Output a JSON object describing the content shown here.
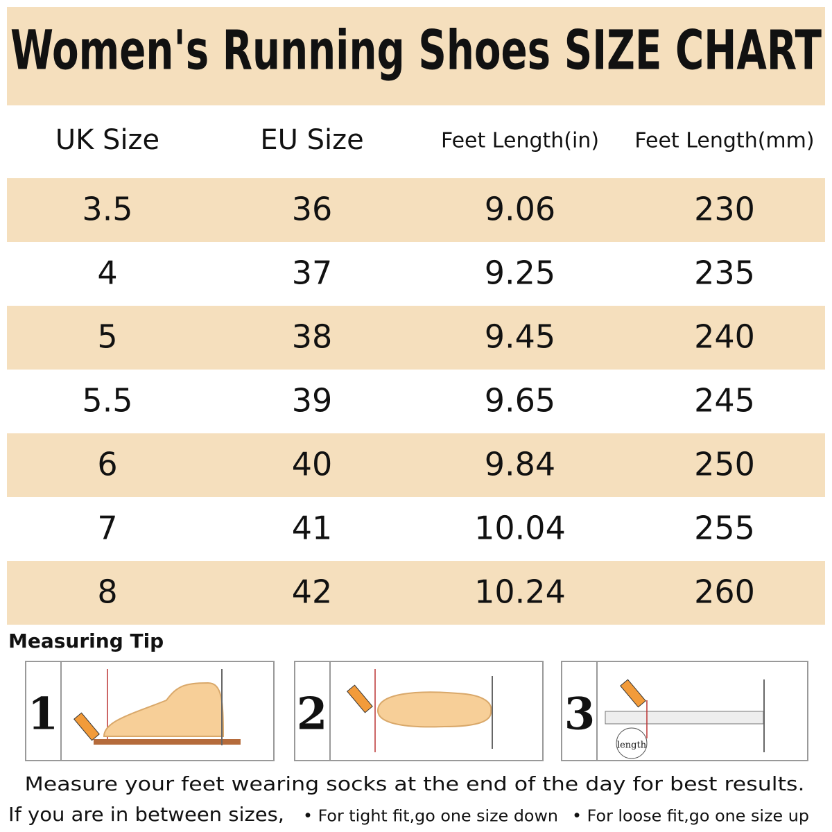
{
  "header": {
    "title": "Women's Running Shoes SIZE CHART"
  },
  "table": {
    "columns": [
      "UK Size",
      "EU Size",
      "Feet Length(in)",
      "Feet Length(mm)"
    ],
    "rows": [
      [
        "3.5",
        "36",
        "9.06",
        "230"
      ],
      [
        "4",
        "37",
        "9.25",
        "235"
      ],
      [
        "5",
        "38",
        "9.45",
        "240"
      ],
      [
        "5.5",
        "39",
        "9.65",
        "245"
      ],
      [
        "6",
        "40",
        "9.84",
        "250"
      ],
      [
        "7",
        "41",
        "10.04",
        "255"
      ],
      [
        "8",
        "42",
        "10.24",
        "260"
      ]
    ]
  },
  "tips": {
    "title": "Measuring Tip",
    "steps": [
      {
        "number": "1"
      },
      {
        "number": "2"
      },
      {
        "number": "3",
        "label": "length"
      }
    ],
    "note": "Measure your feet wearing socks at the end of the day for best results.",
    "between": "If you are in between sizes,",
    "tight": "• For tight fit,go one size down",
    "loose": "• For loose fit,go one size up"
  }
}
